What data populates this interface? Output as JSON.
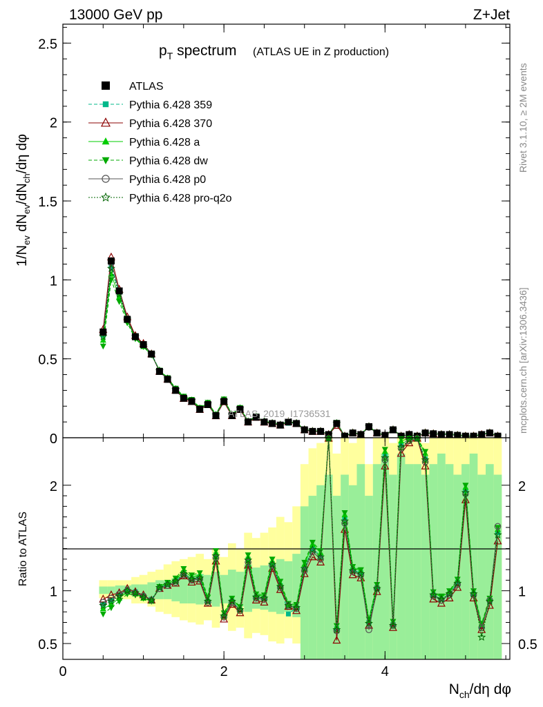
{
  "header": {
    "energy_label": "13000 GeV pp",
    "process_label": "Z+Jet"
  },
  "plot_title": {
    "main": "p",
    "main_sub": "T",
    "main_tail": " spectrum",
    "paren": "(ATLAS UE in Z production)"
  },
  "side_labels": {
    "rivet": "Rivet 3.1.10, ≥ 2M events",
    "mcplots": "mcplots.cern.ch [arXiv:1306.3436]"
  },
  "watermark": "ATLAS_2019_I1736531",
  "axes": {
    "main_ylabel": "1/N_ev dN_ev/dN_ch/dη dφ",
    "ratio_ylabel": "Ratio to ATLAS",
    "xlabel": "N_ch/dη dφ"
  },
  "legend": [
    {
      "name": "ATLAS",
      "color": "#000000",
      "marker": "filled-square",
      "line": "none"
    },
    {
      "name": "Pythia 6.428 359",
      "color": "#00b88a",
      "marker": "small-square",
      "line": "dashed"
    },
    {
      "name": "Pythia 6.428 370",
      "color": "#8b0000",
      "marker": "open-triangle",
      "line": "solid"
    },
    {
      "name": "Pythia 6.428 a",
      "color": "#00cc00",
      "marker": "filled-triangle",
      "line": "solid"
    },
    {
      "name": "Pythia 6.428 dw",
      "color": "#00aa00",
      "marker": "filled-triangle-down",
      "line": "dashed"
    },
    {
      "name": "Pythia 6.428 p0",
      "color": "#555555",
      "marker": "open-circle",
      "line": "solid"
    },
    {
      "name": "Pythia 6.428 pro-q2o",
      "color": "#006400",
      "marker": "open-star",
      "line": "dotted"
    }
  ],
  "chart_data": {
    "type": "line",
    "x": [
      0.5,
      0.6,
      0.7,
      0.8,
      0.9,
      1.0,
      1.1,
      1.2,
      1.3,
      1.4,
      1.5,
      1.6,
      1.7,
      1.8,
      1.9,
      2.0,
      2.1,
      2.2,
      2.3,
      2.4,
      2.5,
      2.6,
      2.7,
      2.8,
      2.9,
      3.0,
      3.1,
      3.2,
      3.3,
      3.4,
      3.5,
      3.6,
      3.7,
      3.8,
      3.9,
      4.0,
      4.1,
      4.2,
      4.3,
      4.4,
      4.5,
      4.6,
      4.7,
      4.8,
      4.9,
      5.0,
      5.1,
      5.2,
      5.3,
      5.4
    ],
    "main_panel": {
      "xlim": [
        0,
        5.55
      ],
      "ylim": [
        0,
        2.62
      ],
      "yticks": [
        "0",
        "0.5",
        "1",
        "1.5",
        "2",
        "2.5"
      ],
      "data_values": [
        0.67,
        1.12,
        0.93,
        0.75,
        0.64,
        0.59,
        0.53,
        0.42,
        0.37,
        0.3,
        0.25,
        0.23,
        0.18,
        0.21,
        0.14,
        0.23,
        0.14,
        0.18,
        0.1,
        0.13,
        0.1,
        0.09,
        0.08,
        0.1,
        0.09,
        0.05,
        0.04,
        0.04,
        0.02,
        0.09,
        0.01,
        0.03,
        0.02,
        0.07,
        0.03,
        0.015,
        0.05,
        0.01,
        0.02,
        0.01,
        0.03,
        0.025,
        0.02,
        0.02,
        0.015,
        0.01,
        0.01,
        0.02,
        0.03,
        0.01
      ]
    },
    "ratio_panel": {
      "ylim": [
        0.35,
        2.45
      ],
      "yticks": [
        "0.5",
        "1",
        "2"
      ],
      "band_yellow": [
        [
          0.93,
          1.1
        ],
        [
          0.93,
          1.1
        ],
        [
          0.92,
          1.1
        ],
        [
          0.92,
          1.1
        ],
        [
          0.88,
          1.13
        ],
        [
          0.88,
          1.15
        ],
        [
          0.85,
          1.18
        ],
        [
          0.8,
          1.2
        ],
        [
          0.78,
          1.25
        ],
        [
          0.75,
          1.28
        ],
        [
          0.72,
          1.3
        ],
        [
          0.7,
          1.32
        ],
        [
          0.68,
          1.35
        ],
        [
          0.72,
          1.3
        ],
        [
          0.65,
          1.4
        ],
        [
          0.72,
          1.32
        ],
        [
          0.62,
          1.45
        ],
        [
          0.65,
          1.4
        ],
        [
          0.55,
          1.55
        ],
        [
          0.6,
          1.5
        ],
        [
          0.58,
          1.55
        ],
        [
          0.52,
          1.6
        ],
        [
          0.5,
          1.7
        ],
        [
          0.55,
          1.65
        ],
        [
          0.5,
          1.8
        ],
        [
          0.35,
          2.2
        ],
        [
          0.35,
          2.35
        ],
        [
          0.35,
          2.4
        ],
        [
          0.35,
          2.45
        ],
        [
          0.35,
          2.3
        ],
        [
          0.35,
          2.45
        ],
        [
          0.35,
          2.4
        ],
        [
          0.35,
          2.45
        ],
        [
          0.35,
          2.2
        ],
        [
          0.35,
          2.45
        ],
        [
          0.35,
          2.45
        ],
        [
          0.35,
          2.4
        ],
        [
          0.35,
          2.45
        ],
        [
          0.35,
          2.45
        ],
        [
          0.35,
          2.45
        ],
        [
          0.35,
          2.4
        ],
        [
          0.35,
          2.45
        ],
        [
          0.35,
          2.45
        ],
        [
          0.35,
          2.45
        ],
        [
          0.35,
          2.45
        ],
        [
          0.35,
          2.45
        ],
        [
          0.35,
          2.45
        ],
        [
          0.35,
          2.45
        ],
        [
          0.35,
          2.45
        ],
        [
          0.35,
          2.45
        ]
      ],
      "band_green": [
        [
          0.97,
          1.04
        ],
        [
          0.97,
          1.04
        ],
        [
          0.96,
          1.05
        ],
        [
          0.96,
          1.05
        ],
        [
          0.95,
          1.06
        ],
        [
          0.95,
          1.06
        ],
        [
          0.93,
          1.08
        ],
        [
          0.92,
          1.1
        ],
        [
          0.92,
          1.1
        ],
        [
          0.9,
          1.12
        ],
        [
          0.88,
          1.14
        ],
        [
          0.88,
          1.15
        ],
        [
          0.87,
          1.16
        ],
        [
          0.88,
          1.15
        ],
        [
          0.85,
          1.18
        ],
        [
          0.88,
          1.15
        ],
        [
          0.84,
          1.2
        ],
        [
          0.85,
          1.18
        ],
        [
          0.8,
          1.25
        ],
        [
          0.83,
          1.22
        ],
        [
          0.82,
          1.24
        ],
        [
          0.8,
          1.26
        ],
        [
          0.78,
          1.3
        ],
        [
          0.8,
          1.28
        ],
        [
          0.75,
          1.35
        ],
        [
          0.35,
          1.8
        ],
        [
          0.35,
          1.9
        ],
        [
          0.35,
          2.0
        ],
        [
          0.35,
          2.1
        ],
        [
          0.35,
          1.9
        ],
        [
          0.35,
          2.1
        ],
        [
          0.35,
          2.0
        ],
        [
          0.35,
          2.2
        ],
        [
          0.35,
          1.9
        ],
        [
          0.35,
          2.2
        ],
        [
          0.35,
          2.3
        ],
        [
          0.35,
          2.1
        ],
        [
          0.35,
          2.3
        ],
        [
          0.35,
          2.2
        ],
        [
          0.35,
          2.2
        ],
        [
          0.35,
          2.1
        ],
        [
          0.35,
          2.2
        ],
        [
          0.35,
          2.3
        ],
        [
          0.35,
          2.2
        ],
        [
          0.35,
          2.1
        ],
        [
          0.35,
          2.2
        ],
        [
          0.35,
          2.3
        ],
        [
          0.35,
          2.1
        ],
        [
          0.35,
          2.2
        ],
        [
          0.35,
          2.1
        ]
      ],
      "reference": [
        0.9,
        0.94,
        0.97,
        1.0,
        0.98,
        0.95,
        0.91,
        1.02,
        1.05,
        1.07,
        1.15,
        1.09,
        1.1,
        0.88,
        1.3,
        0.74,
        0.88,
        0.8,
        1.26,
        0.92,
        0.91,
        1.23,
        1.02,
        0.85,
        0.82,
        1.18,
        1.35,
        1.29,
        2.45,
        0.62,
        1.62,
        1.17,
        1.14,
        0.68,
        1.01,
        2.22,
        0.66,
        2.33,
        2.4,
        2.45,
        2.2,
        0.94,
        0.9,
        0.95,
        1.05,
        1.9,
        0.95,
        0.64,
        0.88,
        1.5
      ]
    },
    "series": [
      {
        "name": "Pythia 6.428 359",
        "values": [
          0.87,
          0.91,
          0.96,
          1.01,
          0.99,
          0.95,
          0.92,
          1.03,
          1.06,
          1.09,
          1.17,
          1.11,
          1.13,
          0.9,
          1.34,
          0.76,
          0.9,
          0.82,
          1.3,
          0.94,
          0.93,
          1.26,
          1.05,
          0.78,
          0.84,
          1.22,
          1.4,
          1.33,
          2.45,
          0.64,
          1.68,
          1.2,
          1.17,
          0.7,
          1.03,
          2.28,
          0.68,
          2.38,
          2.45,
          2.45,
          2.25,
          0.96,
          0.92,
          0.97,
          1.08,
          1.95,
          0.97,
          0.66,
          0.9,
          1.55
        ]
      },
      {
        "name": "Pythia 6.428 370",
        "values": [
          0.92,
          0.96,
          0.98,
          1.02,
          0.99,
          0.96,
          0.91,
          1.02,
          1.05,
          1.07,
          1.14,
          1.08,
          1.09,
          0.88,
          1.28,
          0.73,
          0.87,
          0.79,
          1.24,
          0.91,
          0.89,
          1.21,
          1.01,
          0.85,
          0.81,
          1.16,
          1.32,
          1.27,
          2.45,
          0.53,
          1.58,
          1.15,
          1.12,
          0.67,
          0.99,
          2.18,
          0.65,
          2.3,
          2.4,
          2.45,
          2.18,
          0.92,
          0.88,
          0.93,
          1.03,
          1.86,
          0.93,
          0.63,
          0.86,
          1.47
        ]
      },
      {
        "name": "Pythia 6.428 a",
        "values": [
          0.83,
          0.87,
          0.93,
          0.99,
          0.97,
          0.93,
          0.9,
          1.04,
          1.07,
          1.1,
          1.19,
          1.13,
          1.15,
          0.92,
          1.36,
          0.78,
          0.92,
          0.84,
          1.32,
          0.96,
          0.95,
          1.28,
          1.07,
          0.87,
          0.86,
          1.25,
          1.44,
          1.36,
          2.45,
          0.66,
          1.72,
          1.22,
          1.19,
          0.72,
          1.05,
          2.32,
          0.7,
          2.42,
          2.45,
          2.45,
          2.3,
          0.98,
          0.94,
          0.99,
          1.1,
          1.98,
          0.99,
          0.68,
          0.92,
          1.58
        ]
      },
      {
        "name": "Pythia 6.428 dw",
        "values": [
          0.78,
          0.84,
          0.9,
          0.97,
          0.96,
          0.93,
          0.9,
          1.04,
          1.08,
          1.12,
          1.21,
          1.15,
          1.17,
          0.94,
          1.38,
          0.79,
          0.93,
          0.85,
          1.34,
          0.97,
          0.96,
          1.3,
          1.09,
          0.88,
          0.87,
          1.27,
          1.46,
          1.38,
          2.45,
          0.67,
          1.74,
          1.23,
          1.2,
          0.73,
          1.06,
          2.34,
          0.71,
          2.44,
          2.45,
          2.45,
          2.32,
          0.99,
          0.95,
          1.0,
          1.11,
          2.0,
          1.0,
          0.69,
          0.93,
          1.6
        ]
      },
      {
        "name": "Pythia 6.428 p0",
        "values": [
          0.89,
          0.93,
          0.97,
          1.0,
          0.98,
          0.95,
          0.91,
          1.02,
          1.05,
          1.08,
          1.15,
          1.1,
          1.11,
          0.89,
          1.31,
          0.75,
          0.89,
          0.81,
          1.27,
          0.93,
          0.92,
          1.24,
          1.03,
          0.86,
          0.83,
          1.19,
          1.37,
          1.3,
          2.45,
          0.62,
          1.64,
          1.18,
          1.15,
          0.63,
          1.02,
          2.24,
          0.67,
          2.35,
          2.42,
          2.45,
          2.22,
          0.95,
          0.91,
          0.96,
          1.06,
          1.92,
          0.96,
          0.65,
          0.91,
          1.61
        ]
      },
      {
        "name": "Pythia 6.428 pro-q2o",
        "values": [
          0.86,
          0.9,
          0.95,
          1.0,
          0.98,
          0.94,
          0.91,
          1.03,
          1.06,
          1.09,
          1.16,
          1.11,
          1.12,
          0.9,
          1.33,
          0.76,
          0.9,
          0.82,
          1.29,
          0.94,
          0.93,
          1.25,
          1.04,
          0.86,
          0.84,
          1.21,
          1.39,
          1.32,
          2.45,
          0.63,
          1.66,
          1.19,
          1.16,
          0.69,
          1.02,
          2.26,
          0.67,
          2.36,
          2.43,
          2.45,
          2.24,
          0.96,
          0.92,
          0.97,
          1.07,
          1.93,
          0.97,
          0.56,
          0.9,
          1.53
        ]
      }
    ],
    "xticks": [
      "0",
      "2",
      "4"
    ]
  }
}
